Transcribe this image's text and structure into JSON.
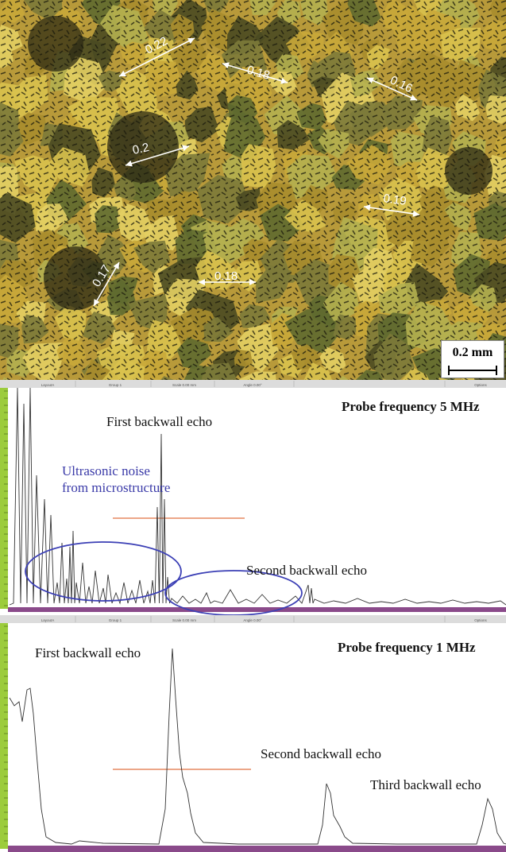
{
  "micrograph": {
    "grain_size_labels": [
      "0.22",
      "0.18",
      "0.16",
      "0.2",
      "0.19",
      "0.17",
      "0.18"
    ],
    "scale_bar": "0.2 mm"
  },
  "panel_5mhz": {
    "title": "Probe frequency 5 MHz",
    "header_tabs": [
      "LayoutA",
      "Group 1",
      "Scale 0.00 mm",
      "Angle 0.00°",
      "Options"
    ],
    "first_echo_label": "First backwall echo",
    "second_echo_label": "Second backwall echo",
    "noise_label": "Ultrasonic noise from microstructure",
    "threshold_color": "#e07040",
    "circle_color": "#3b3fb5"
  },
  "panel_1mhz": {
    "title": "Probe frequency 1 MHz",
    "header_tabs": [
      "LayoutA",
      "Group 1",
      "Scale 0.00 mm",
      "Angle 0.00°",
      "Options"
    ],
    "first_echo_label": "First backwall echo",
    "second_echo_label": "Second backwall echo",
    "third_echo_label": "Third backwall echo",
    "threshold_color": "#e07040"
  },
  "colors": {
    "ruler_green": "#9ccc3c",
    "axis_purple": "#8a4a8a",
    "trace": "#333333"
  }
}
